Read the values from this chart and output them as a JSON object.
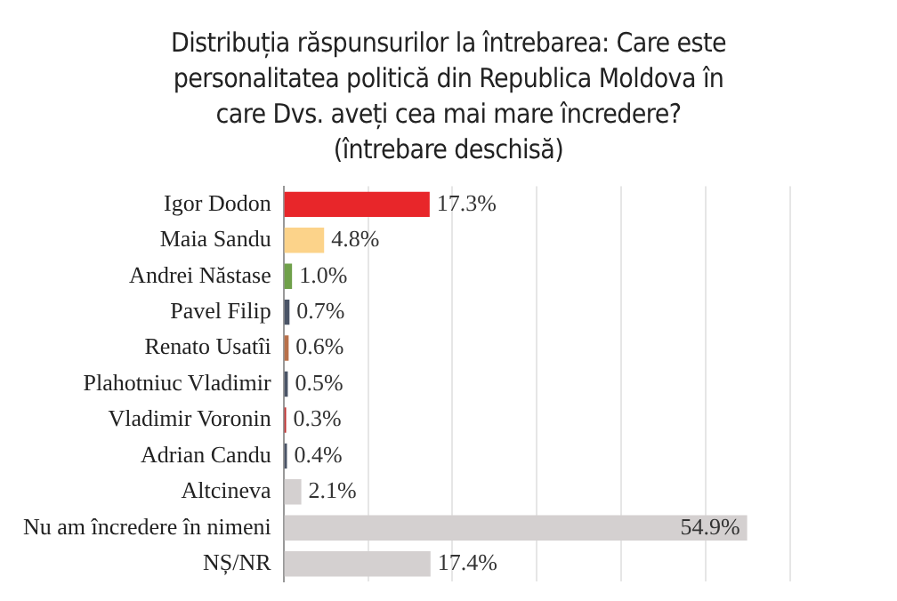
{
  "chart_data": {
    "type": "bar",
    "orientation": "horizontal",
    "title": "Distribuția răspunsurilor la întrebarea: Care este personalitatea politică din Republica Moldova în care Dvs. aveți cea mai mare încredere? (întrebare deschisă)",
    "categories": [
      "Igor Dodon",
      "Maia Sandu",
      "Andrei Năstase",
      "Pavel Filip",
      "Renato Usatîi",
      "Plahotniuc Vladimir",
      "Vladimir Voronin",
      "Adrian Candu",
      "Altcineva",
      "Nu am încredere în nimeni",
      "NȘ/NR"
    ],
    "values": [
      17.3,
      4.8,
      1.0,
      0.7,
      0.6,
      0.5,
      0.3,
      0.4,
      2.1,
      54.9,
      17.4
    ],
    "colors": [
      "#e8262a",
      "#fcd38a",
      "#6fa04a",
      "#4a5466",
      "#b8704a",
      "#4a5466",
      "#c03030",
      "#4a5466",
      "#d4d0d0",
      "#d4d0d0",
      "#d4d0d0"
    ],
    "value_labels": [
      "17.3%",
      "4.8%",
      "1.0%",
      "0.7%",
      "0.6%",
      "0.5%",
      "0.3%",
      "0.4%",
      "2.1%",
      "54.9%",
      "17.4%"
    ],
    "xlim": [
      0,
      60
    ],
    "xticks": [
      {
        "value": 0,
        "label": null
      },
      {
        "value": 10,
        "label": null
      },
      {
        "value": 20,
        "label": null
      },
      {
        "value": 30,
        "label": null
      },
      {
        "value": 40,
        "label": null
      },
      {
        "value": 50,
        "label": null
      },
      {
        "value": 60,
        "label": null
      }
    ],
    "tick_labels": "y",
    "grid": "x",
    "legend": false
  }
}
